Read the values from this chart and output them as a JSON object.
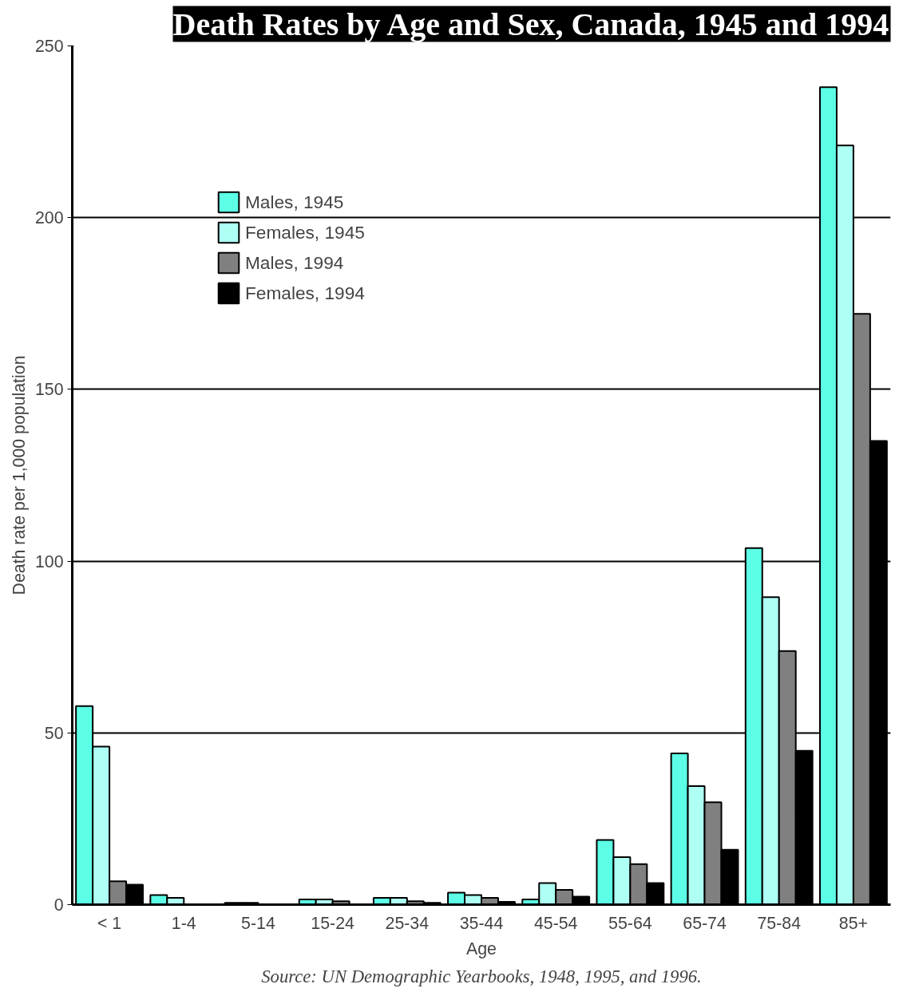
{
  "chart_data": {
    "type": "bar",
    "title": "Death Rates by Age and Sex, Canada, 1945 and 1994",
    "xlabel": "Age",
    "ylabel": "Death rate per 1,000 population",
    "categories": [
      "< 1",
      "1-4",
      "5-14",
      "15-24",
      "25-34",
      "35-44",
      "45-54",
      "55-64",
      "65-74",
      "75-84",
      "85+"
    ],
    "series": [
      {
        "name": "Males, 1945",
        "color": "#5cffe6",
        "values": [
          57.8,
          2.8,
          0.5,
          1.5,
          2,
          3.5,
          1.5,
          18.8,
          44,
          103.8,
          238
        ]
      },
      {
        "name": "Females, 1945",
        "color": "#aefff4",
        "values": [
          46,
          2,
          0.5,
          1.5,
          2,
          2.8,
          6.3,
          13.8,
          34.5,
          89.5,
          221
        ]
      },
      {
        "name": "Males, 1994",
        "color": "#808080",
        "values": [
          6.8,
          null,
          null,
          1,
          1,
          2,
          4.3,
          11.8,
          29.8,
          73.8,
          172
        ]
      },
      {
        "name": "Females, 1994",
        "color": "#000000",
        "values": [
          5.8,
          null,
          null,
          null,
          0.5,
          0.8,
          2.3,
          6.3,
          16,
          44.8,
          135
        ]
      }
    ],
    "ylim": [
      0,
      250
    ],
    "yticks": [
      0,
      50,
      100,
      150,
      200,
      250
    ],
    "grid": "y",
    "legend": "top left",
    "annotations": [
      "Source: UN Demographic Yearbooks, 1948, 1995, and 1996."
    ]
  }
}
